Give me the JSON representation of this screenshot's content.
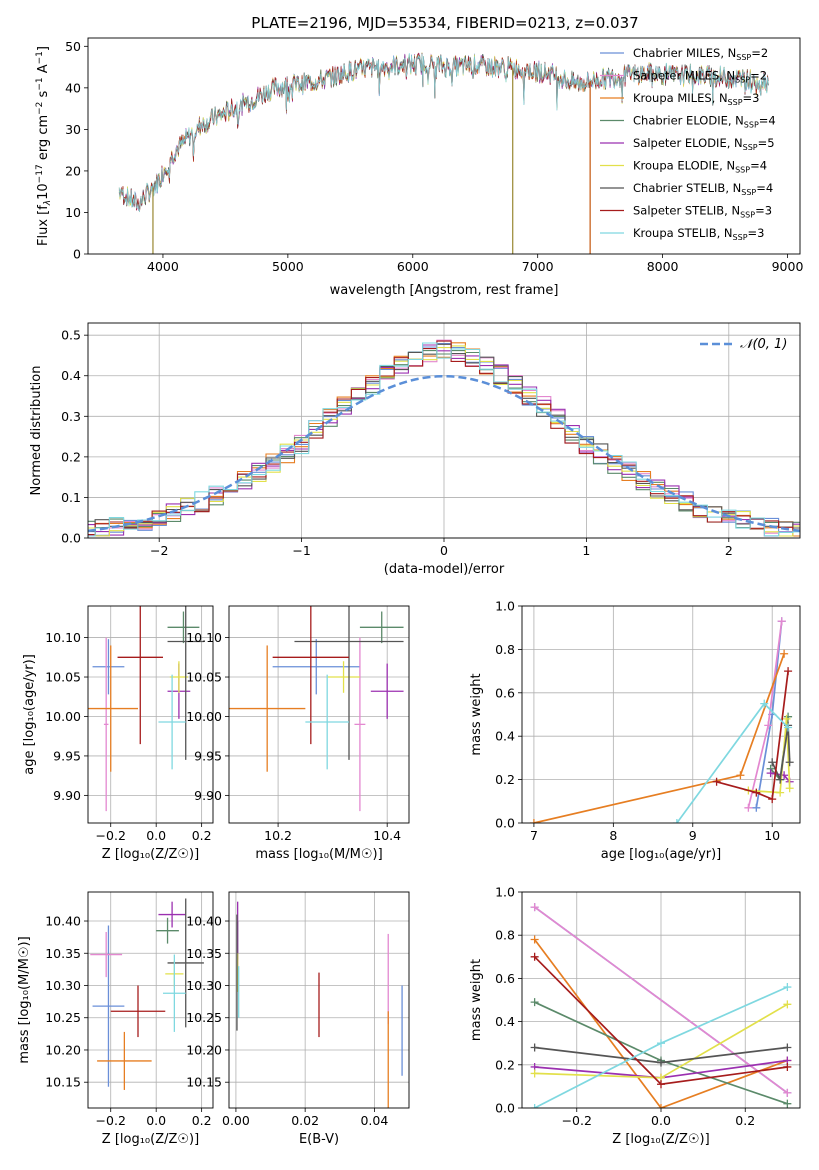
{
  "chart_data": [
    {
      "id": "spectrum",
      "type": "line",
      "title": "PLATE=2196, MJD=53534, FIBERID=0213, z=0.037",
      "xlabel": "wavelength [Angstrom, rest frame]",
      "ylabel_parts": [
        "Flux [f",
        "λ",
        "10",
        "−17",
        " erg cm",
        "−2",
        " s",
        "−1",
        " A",
        "−1",
        "]"
      ],
      "xlim": [
        3400,
        9100
      ],
      "ylim": [
        0,
        52
      ],
      "xticks": [
        4000,
        5000,
        6000,
        7000,
        8000,
        9000
      ],
      "yticks": [
        0,
        10,
        20,
        30,
        40,
        50
      ],
      "grid": false,
      "legend_position": "top-right",
      "series": [
        {
          "name": "Chabrier MILES, N",
          "nssp": "2",
          "color": "#6a8fd8"
        },
        {
          "name": "Salpeter MILES, N",
          "nssp": "2",
          "color": "#e388d0"
        },
        {
          "name": "Kroupa MILES, N",
          "nssp": "3",
          "color": "#e67e22"
        },
        {
          "name": "Chabrier ELODIE, N",
          "nssp": "4",
          "color": "#5b8a6a"
        },
        {
          "name": "Salpeter ELODIE, N",
          "nssp": "5",
          "color": "#9b30b0"
        },
        {
          "name": "Kroupa ELODIE, N",
          "nssp": "4",
          "color": "#e2e04a"
        },
        {
          "name": "Chabrier STELIB, N",
          "nssp": "4",
          "color": "#555555"
        },
        {
          "name": "Salpeter STELIB, N",
          "nssp": "3",
          "color": "#a61c1c"
        },
        {
          "name": "Kroupa STELIB, N",
          "nssp": "3",
          "color": "#7fd8e0"
        }
      ],
      "nssp_subscript": "SSP",
      "continuum": [
        [
          3650,
          15
        ],
        [
          3800,
          12
        ],
        [
          3950,
          17
        ],
        [
          4100,
          25
        ],
        [
          4300,
          31
        ],
        [
          4500,
          34
        ],
        [
          4700,
          37
        ],
        [
          4900,
          40
        ],
        [
          5100,
          41
        ],
        [
          5300,
          42
        ],
        [
          5500,
          44
        ],
        [
          5700,
          45
        ],
        [
          5900,
          45.5
        ],
        [
          6100,
          46
        ],
        [
          6300,
          45
        ],
        [
          6500,
          45.5
        ],
        [
          6700,
          45
        ],
        [
          6900,
          44.5
        ],
        [
          7100,
          43.5
        ],
        [
          7300,
          41
        ],
        [
          7500,
          42
        ],
        [
          7700,
          43
        ],
        [
          7900,
          43.5
        ],
        [
          8100,
          43
        ],
        [
          8300,
          43
        ],
        [
          8500,
          42.5
        ],
        [
          8700,
          42
        ],
        [
          8850,
          41.5
        ]
      ],
      "dips": [
        {
          "wavelength": 3920,
          "color": "#a09040",
          "to": 0
        },
        {
          "wavelength": 6800,
          "color": "#a09040",
          "to": 0
        },
        {
          "wavelength": 7420,
          "color": "#c8621e",
          "to": 0
        }
      ]
    },
    {
      "id": "residuals",
      "type": "step",
      "xlabel": "(data-model)/error",
      "ylabel": "Normed distribution",
      "xlim": [
        -2.5,
        2.5
      ],
      "ylim": [
        0,
        0.53
      ],
      "xticks": [
        -2,
        -1,
        0,
        1,
        2
      ],
      "xtick_labels": [
        "−2",
        "−1",
        "0",
        "1",
        "2"
      ],
      "yticks": [
        0.0,
        0.1,
        0.2,
        0.3,
        0.4,
        0.5
      ],
      "ytick_labels": [
        "0.0",
        "0.1",
        "0.2",
        "0.3",
        "0.4",
        "0.5"
      ],
      "grid": true,
      "legend_position": "top-right",
      "gaussian_label": "𝒩(0, 1)",
      "gaussian_color": "#5b8fd8",
      "bin_width": 0.1
    },
    {
      "id": "age-vs-Z",
      "type": "errorbar",
      "xlabel": "Z [log₁₀(Z/Z☉)]",
      "ylabel": "age  [log₁₀(age/yr)]",
      "xlim": [
        -0.3,
        0.25
      ],
      "ylim": [
        9.865,
        10.14
      ],
      "xticks": [
        -0.2,
        0.0,
        0.2
      ],
      "xtick_labels": [
        "−0.2",
        "0.0",
        "0.2"
      ],
      "yticks": [
        9.9,
        9.95,
        10.0,
        10.05,
        10.1
      ],
      "ytick_labels": [
        "9.90",
        "9.95",
        "10.00",
        "10.05",
        "10.10"
      ],
      "grid": true,
      "points": [
        {
          "series": 0,
          "x": -0.21,
          "xerr": 0.07,
          "y": 10.063,
          "yerr": 0.035
        },
        {
          "series": 1,
          "x": -0.22,
          "xerr": 0.01,
          "y": 9.99,
          "yerr": 0.11
        },
        {
          "series": 2,
          "x": -0.2,
          "xerr": 0.12,
          "y": 10.01,
          "yerr": 0.08
        },
        {
          "series": 3,
          "x": 0.12,
          "xerr": 0.07,
          "y": 10.113,
          "yerr": 0.02
        },
        {
          "series": 4,
          "x": 0.1,
          "xerr": 0.05,
          "y": 10.032,
          "yerr": 0.035
        },
        {
          "series": 5,
          "x": 0.1,
          "xerr": 0.04,
          "y": 10.05,
          "yerr": 0.02
        },
        {
          "series": 6,
          "x": 0.13,
          "xerr": 0.08,
          "y": 10.095,
          "yerr": 0.15
        },
        {
          "series": 7,
          "x": -0.07,
          "xerr": 0.1,
          "y": 10.075,
          "yerr": 0.11
        },
        {
          "series": 8,
          "x": 0.07,
          "xerr": 0.06,
          "y": 9.993,
          "yerr": 0.06
        }
      ]
    },
    {
      "id": "age-vs-mass",
      "type": "errorbar",
      "xlabel": "mass [log₁₀(M/M☉)]",
      "xlim": [
        10.11,
        10.44
      ],
      "ylim": [
        9.865,
        10.14
      ],
      "xticks": [
        10.2,
        10.4
      ],
      "xtick_labels": [
        "10.2",
        "10.4"
      ],
      "yticks": [
        9.9,
        9.95,
        10.0,
        10.05,
        10.1
      ],
      "ytick_labels": [
        "9.90",
        "9.95",
        "10.00",
        "10.05",
        "10.10"
      ],
      "grid": true,
      "points": [
        {
          "series": 0,
          "x": 10.27,
          "xerr": 0.08,
          "y": 10.063,
          "yerr": 0.035
        },
        {
          "series": 1,
          "x": 10.35,
          "xerr": 0.01,
          "y": 9.99,
          "yerr": 0.11
        },
        {
          "series": 2,
          "x": 10.18,
          "xerr": 0.07,
          "y": 10.01,
          "yerr": 0.08
        },
        {
          "series": 3,
          "x": 10.39,
          "xerr": 0.04,
          "y": 10.113,
          "yerr": 0.02
        },
        {
          "series": 4,
          "x": 10.4,
          "xerr": 0.03,
          "y": 10.032,
          "yerr": 0.035
        },
        {
          "series": 5,
          "x": 10.32,
          "xerr": 0.03,
          "y": 10.05,
          "yerr": 0.02
        },
        {
          "series": 6,
          "x": 10.33,
          "xerr": 0.1,
          "y": 10.095,
          "yerr": 0.15
        },
        {
          "series": 7,
          "x": 10.26,
          "xerr": 0.07,
          "y": 10.075,
          "yerr": 0.11
        },
        {
          "series": 8,
          "x": 10.29,
          "xerr": 0.04,
          "y": 9.993,
          "yerr": 0.06
        }
      ]
    },
    {
      "id": "weight-vs-age",
      "type": "line",
      "xlabel": "age  [log₁₀(age/yr)]",
      "ylabel": "mass weight",
      "xlim": [
        6.85,
        10.35
      ],
      "ylim": [
        0,
        1.0
      ],
      "xticks": [
        7,
        8,
        9,
        10
      ],
      "xtick_labels": [
        "7",
        "8",
        "9",
        "10"
      ],
      "yticks": [
        0,
        0.2,
        0.4,
        0.6,
        0.8,
        1.0
      ],
      "ytick_labels": [
        "0.0",
        "0.2",
        "0.4",
        "0.6",
        "0.8",
        "1.0"
      ],
      "grid": true,
      "lines": [
        {
          "series": 0,
          "x": [
            9.8,
            10.0,
            10.12
          ],
          "y": [
            0.07,
            0.5,
            0.93
          ]
        },
        {
          "series": 1,
          "x": [
            9.7,
            9.95,
            10.12
          ],
          "y": [
            0.07,
            0.45,
            0.93
          ]
        },
        {
          "series": 2,
          "x": [
            7.0,
            9.6,
            10.15
          ],
          "y": [
            0.0,
            0.22,
            0.78
          ]
        },
        {
          "series": 3,
          "x": [
            9.98,
            10.1,
            10.2
          ],
          "y": [
            0.25,
            0.2,
            0.49
          ]
        },
        {
          "series": 4,
          "x": [
            9.98,
            10.15,
            10.22
          ],
          "y": [
            0.23,
            0.22,
            0.19
          ]
        },
        {
          "series": 5,
          "x": [
            9.7,
            10.1,
            10.18,
            10.22
          ],
          "y": [
            0.15,
            0.14,
            0.48,
            0.16
          ]
        },
        {
          "series": 6,
          "x": [
            10.0,
            10.1,
            10.2,
            10.22
          ],
          "y": [
            0.28,
            0.2,
            0.45,
            0.28
          ]
        },
        {
          "series": 7,
          "x": [
            9.3,
            9.8,
            10.0,
            10.2
          ],
          "y": [
            0.19,
            0.14,
            0.11,
            0.7
          ]
        },
        {
          "series": 8,
          "x": [
            8.8,
            9.9,
            10.2
          ],
          "y": [
            0.0,
            0.55,
            0.44
          ]
        }
      ]
    },
    {
      "id": "mass-vs-Z",
      "type": "errorbar",
      "xlabel": "Z [log₁₀(Z/Z☉)]",
      "ylabel": "mass [log₁₀(M/M☉)]",
      "xlim": [
        -0.3,
        0.25
      ],
      "ylim": [
        10.11,
        10.445
      ],
      "xticks": [
        -0.2,
        0.0,
        0.2
      ],
      "xtick_labels": [
        "−0.2",
        "0.0",
        "0.2"
      ],
      "yticks": [
        10.15,
        10.2,
        10.25,
        10.3,
        10.35,
        10.4
      ],
      "ytick_labels": [
        "10.15",
        "10.20",
        "10.25",
        "10.30",
        "10.35",
        "10.40"
      ],
      "grid": true,
      "points": [
        {
          "series": 0,
          "x": -0.21,
          "xerr": 0.07,
          "y": 10.268,
          "yerr": 0.125
        },
        {
          "series": 1,
          "x": -0.22,
          "xerr": 0.07,
          "y": 10.348,
          "yerr": 0.035
        },
        {
          "series": 2,
          "x": -0.14,
          "xerr": 0.12,
          "y": 10.183,
          "yerr": 0.045
        },
        {
          "series": 3,
          "x": 0.05,
          "xerr": 0.05,
          "y": 10.385,
          "yerr": 0.02
        },
        {
          "series": 4,
          "x": 0.07,
          "xerr": 0.06,
          "y": 10.41,
          "yerr": 0.02
        },
        {
          "series": 5,
          "x": 0.08,
          "xerr": 0.04,
          "y": 10.318,
          "yerr": 0.02
        },
        {
          "series": 6,
          "x": 0.13,
          "xerr": 0.08,
          "y": 10.335,
          "yerr": 0.1
        },
        {
          "series": 7,
          "x": -0.08,
          "xerr": 0.12,
          "y": 10.26,
          "yerr": 0.04
        },
        {
          "series": 8,
          "x": 0.08,
          "xerr": 0.05,
          "y": 10.288,
          "yerr": 0.06
        }
      ]
    },
    {
      "id": "mass-vs-ebv",
      "type": "errorbar",
      "xlabel": "E(B-V)",
      "xlim": [
        -0.002,
        0.05
      ],
      "ylim": [
        10.11,
        10.445
      ],
      "xticks": [
        0.0,
        0.02,
        0.04
      ],
      "xtick_labels": [
        "0.00",
        "0.02",
        "0.04"
      ],
      "yticks": [
        10.15,
        10.2,
        10.25,
        10.3,
        10.35,
        10.4
      ],
      "ytick_labels": [
        "10.15",
        "10.20",
        "10.25",
        "10.30",
        "10.35",
        "10.40"
      ],
      "grid": true,
      "points": [
        {
          "series": 0,
          "x": 0.048,
          "xerr": 0.0,
          "y": 10.23,
          "yerr": 0.07
        },
        {
          "series": 1,
          "x": 0.044,
          "xerr": 0.0,
          "y": 10.31,
          "yerr": 0.07
        },
        {
          "series": 2,
          "x": 0.044,
          "xerr": 0.0,
          "y": 10.18,
          "yerr": 0.08
        },
        {
          "series": 3,
          "x": 0.0005,
          "xerr": 0.0,
          "y": 10.37,
          "yerr": 0.03
        },
        {
          "series": 4,
          "x": 0.0005,
          "xerr": 0.0,
          "y": 10.38,
          "yerr": 0.05
        },
        {
          "series": 5,
          "x": 0.0005,
          "xerr": 0.0,
          "y": 10.32,
          "yerr": 0.03
        },
        {
          "series": 6,
          "x": 0.0003,
          "xerr": 0.0,
          "y": 10.32,
          "yerr": 0.09
        },
        {
          "series": 7,
          "x": 0.024,
          "xerr": 0.0,
          "y": 10.27,
          "yerr": 0.05
        },
        {
          "series": 8,
          "x": 0.0008,
          "xerr": 0.0,
          "y": 10.29,
          "yerr": 0.04
        }
      ]
    },
    {
      "id": "weight-vs-Z",
      "type": "line",
      "xlabel": "Z [log₁₀(Z/Z☉)]",
      "ylabel": "mass weight",
      "xlim": [
        -0.33,
        0.33
      ],
      "ylim": [
        0,
        1.0
      ],
      "xticks": [
        -0.2,
        0.0,
        0.2
      ],
      "xtick_labels": [
        "−0.2",
        "0.0",
        "0.2"
      ],
      "yticks": [
        0,
        0.2,
        0.4,
        0.6,
        0.8,
        1.0
      ],
      "ytick_labels": [
        "0.0",
        "0.2",
        "0.4",
        "0.6",
        "0.8",
        "1.0"
      ],
      "grid": true,
      "lines": [
        {
          "series": 0,
          "x": [
            -0.3,
            0.3
          ],
          "y": [
            0.93,
            0.07
          ]
        },
        {
          "series": 1,
          "x": [
            -0.3,
            0.3
          ],
          "y": [
            0.93,
            0.07
          ]
        },
        {
          "series": 2,
          "x": [
            -0.3,
            0.0,
            0.3
          ],
          "y": [
            0.78,
            0.0,
            0.22
          ]
        },
        {
          "series": 3,
          "x": [
            -0.3,
            0.0,
            0.3
          ],
          "y": [
            0.49,
            0.22,
            0.02
          ]
        },
        {
          "series": 4,
          "x": [
            -0.3,
            0.0,
            0.3
          ],
          "y": [
            0.19,
            0.14,
            0.22
          ]
        },
        {
          "series": 5,
          "x": [
            -0.3,
            0.0,
            0.3
          ],
          "y": [
            0.16,
            0.14,
            0.48
          ]
        },
        {
          "series": 6,
          "x": [
            -0.3,
            0.0,
            0.3
          ],
          "y": [
            0.28,
            0.21,
            0.28
          ]
        },
        {
          "series": 7,
          "x": [
            -0.3,
            0.0,
            0.3
          ],
          "y": [
            0.7,
            0.11,
            0.19
          ]
        },
        {
          "series": 8,
          "x": [
            -0.3,
            0.0,
            0.3
          ],
          "y": [
            0.0,
            0.3,
            0.56
          ]
        }
      ]
    }
  ]
}
